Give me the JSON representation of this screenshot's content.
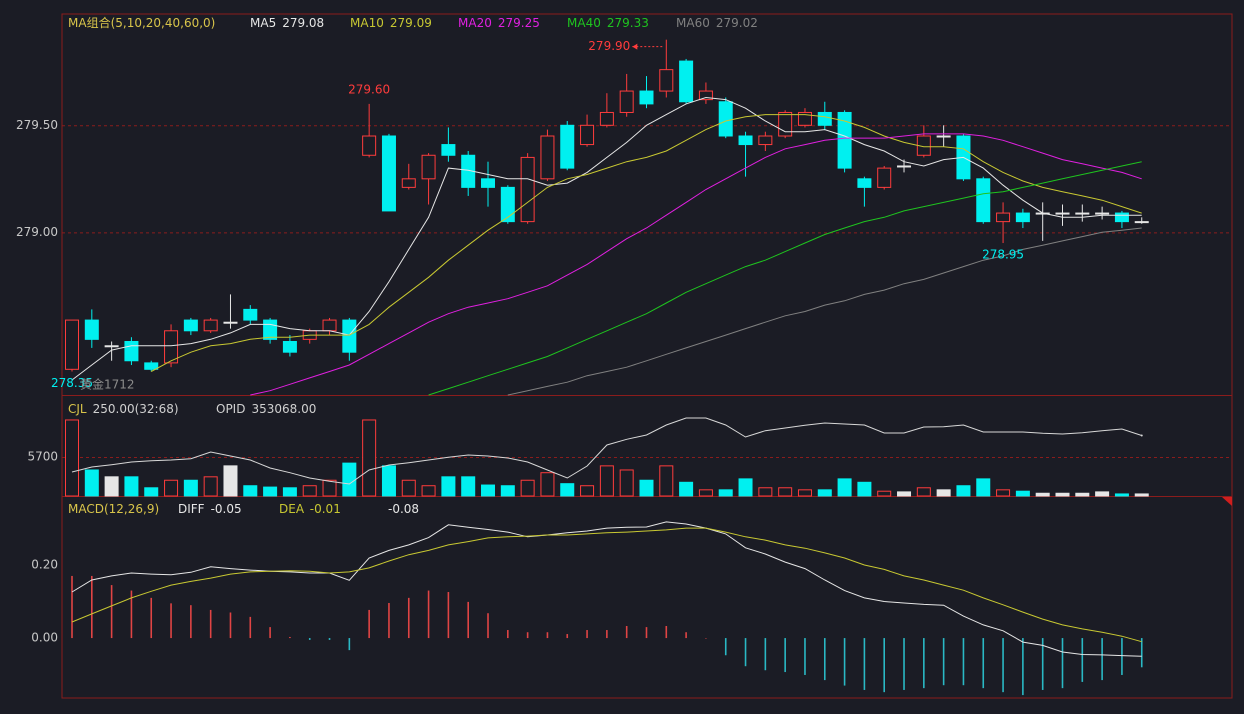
{
  "chart_data": [
    {
      "type": "candlestick",
      "title": "MA组合(5,10,20,40,60,0)",
      "instrument": "黄金1712",
      "up_color": "#ff3c3c",
      "down_color": "#00f0f0",
      "flat_color": "#e6e6e6",
      "ylim": [
        278.24,
        280.02
      ],
      "yticks": [
        {
          "value": 279.0,
          "label": "279.00"
        },
        {
          "value": 279.5,
          "label": "279.50"
        }
      ],
      "grid": true,
      "open": [
        278.36,
        278.59,
        278.47,
        278.49,
        278.39,
        278.39,
        278.59,
        278.54,
        278.58,
        278.64,
        278.59,
        278.49,
        278.5,
        278.54,
        278.59,
        279.36,
        279.45,
        279.21,
        279.25,
        279.41,
        279.36,
        279.25,
        279.21,
        279.05,
        279.25,
        279.5,
        279.41,
        279.5,
        279.56,
        279.66,
        279.66,
        279.8,
        279.62,
        279.61,
        279.45,
        279.41,
        279.45,
        279.5,
        279.56,
        279.56,
        279.25,
        279.21,
        279.31,
        279.36,
        279.45,
        279.45,
        279.25,
        279.05,
        279.09,
        279.09,
        279.09,
        279.09,
        279.09,
        279.09,
        279.05
      ],
      "high": [
        278.59,
        278.64,
        278.49,
        278.51,
        278.4,
        278.57,
        278.6,
        278.6,
        278.71,
        278.66,
        278.6,
        278.52,
        278.55,
        278.6,
        278.6,
        279.6,
        279.46,
        279.32,
        279.37,
        279.49,
        279.38,
        279.33,
        279.22,
        279.37,
        279.48,
        279.52,
        279.55,
        279.65,
        279.74,
        279.73,
        279.9,
        279.81,
        279.7,
        279.63,
        279.47,
        279.47,
        279.57,
        279.58,
        279.61,
        279.57,
        279.26,
        279.31,
        279.34,
        279.5,
        279.5,
        279.46,
        279.26,
        279.14,
        279.11,
        279.14,
        279.13,
        279.13,
        279.12,
        279.1,
        279.07
      ],
      "low": [
        278.35,
        278.46,
        278.4,
        278.38,
        278.35,
        278.37,
        278.52,
        278.53,
        278.55,
        278.57,
        278.48,
        278.42,
        278.48,
        278.52,
        278.4,
        279.35,
        279.1,
        279.2,
        279.13,
        279.33,
        279.17,
        279.12,
        279.04,
        279.04,
        279.24,
        279.29,
        279.4,
        279.49,
        279.54,
        279.58,
        279.63,
        279.6,
        279.6,
        279.44,
        279.26,
        279.38,
        279.44,
        279.49,
        279.48,
        279.28,
        279.12,
        279.2,
        279.28,
        279.35,
        279.4,
        279.24,
        279.04,
        278.95,
        279.02,
        278.96,
        279.03,
        279.05,
        279.06,
        279.02,
        279.04
      ],
      "close": [
        278.59,
        278.5,
        278.47,
        278.4,
        278.36,
        278.54,
        278.54,
        278.59,
        278.58,
        278.59,
        278.5,
        278.44,
        278.54,
        278.59,
        278.44,
        279.45,
        279.1,
        279.25,
        279.36,
        279.36,
        279.21,
        279.21,
        279.05,
        279.35,
        279.45,
        279.3,
        279.5,
        279.56,
        279.66,
        279.6,
        279.76,
        279.61,
        279.66,
        279.45,
        279.41,
        279.45,
        279.56,
        279.56,
        279.5,
        279.3,
        279.21,
        279.3,
        279.31,
        279.45,
        279.45,
        279.25,
        279.05,
        279.09,
        279.05,
        279.09,
        279.09,
        279.09,
        279.09,
        279.05,
        279.05
      ],
      "series": [
        {
          "name": "MA5",
          "color": "#e6e6e6",
          "values": [
            278.31,
            278.38,
            278.45,
            278.47,
            278.47,
            278.47,
            278.48,
            278.5,
            278.53,
            278.57,
            278.57,
            278.55,
            278.54,
            278.54,
            278.52,
            278.63,
            278.77,
            278.92,
            279.07,
            279.3,
            279.29,
            279.27,
            279.25,
            279.25,
            279.22,
            279.23,
            279.28,
            279.35,
            279.42,
            279.5,
            279.55,
            279.6,
            279.63,
            279.62,
            279.58,
            279.52,
            279.47,
            279.47,
            279.48,
            279.45,
            279.41,
            279.38,
            279.33,
            279.31,
            279.34,
            279.35,
            279.3,
            279.22,
            279.15,
            279.09,
            279.07,
            279.07,
            279.08,
            279.08,
            279.08
          ]
        },
        {
          "name": "MA10",
          "color": "#c8c832",
          "values": [
            null,
            null,
            null,
            null,
            278.35,
            278.4,
            278.44,
            278.47,
            278.48,
            278.5,
            278.51,
            278.51,
            278.52,
            278.52,
            278.52,
            278.57,
            278.65,
            278.72,
            278.79,
            278.87,
            278.94,
            279.01,
            279.07,
            279.14,
            279.21,
            279.25,
            279.27,
            279.3,
            279.33,
            279.35,
            279.38,
            279.43,
            279.48,
            279.52,
            279.54,
            279.55,
            279.55,
            279.55,
            279.54,
            279.52,
            279.49,
            279.45,
            279.42,
            279.4,
            279.4,
            279.39,
            279.33,
            279.28,
            279.24,
            279.21,
            279.19,
            279.17,
            279.15,
            279.12,
            279.09
          ]
        },
        {
          "name": "MA20",
          "color": "#e020e0",
          "values": [
            null,
            null,
            null,
            null,
            null,
            null,
            null,
            null,
            null,
            278.24,
            278.26,
            278.29,
            278.32,
            278.35,
            278.38,
            278.43,
            278.48,
            278.53,
            278.58,
            278.62,
            278.65,
            278.67,
            278.69,
            278.72,
            278.75,
            278.8,
            278.85,
            278.91,
            278.97,
            279.02,
            279.08,
            279.14,
            279.2,
            279.25,
            279.3,
            279.35,
            279.39,
            279.41,
            279.43,
            279.44,
            279.44,
            279.44,
            279.45,
            279.46,
            279.46,
            279.46,
            279.45,
            279.43,
            279.4,
            279.37,
            279.34,
            279.32,
            279.3,
            279.28,
            279.25
          ]
        },
        {
          "name": "MA40",
          "color": "#1fc41f",
          "values": [
            null,
            null,
            null,
            null,
            null,
            null,
            null,
            null,
            null,
            null,
            null,
            null,
            null,
            null,
            null,
            null,
            null,
            null,
            278.24,
            278.27,
            278.3,
            278.33,
            278.36,
            278.39,
            278.42,
            278.46,
            278.5,
            278.54,
            278.58,
            278.62,
            278.67,
            278.72,
            278.76,
            278.8,
            278.84,
            278.87,
            278.91,
            278.95,
            278.99,
            279.02,
            279.05,
            279.07,
            279.1,
            279.12,
            279.14,
            279.16,
            279.18,
            279.19,
            279.21,
            279.23,
            279.25,
            279.27,
            279.29,
            279.31,
            279.33
          ]
        },
        {
          "name": "MA60",
          "color": "#808080",
          "values": [
            null,
            null,
            null,
            null,
            null,
            null,
            null,
            null,
            null,
            null,
            null,
            null,
            null,
            null,
            null,
            null,
            null,
            null,
            null,
            null,
            null,
            null,
            278.24,
            278.26,
            278.28,
            278.3,
            278.33,
            278.35,
            278.37,
            278.4,
            278.43,
            278.46,
            278.49,
            278.52,
            278.55,
            278.58,
            278.61,
            278.63,
            278.66,
            278.68,
            278.71,
            278.73,
            278.76,
            278.78,
            278.81,
            278.84,
            278.87,
            278.89,
            278.92,
            278.94,
            278.96,
            278.98,
            279.0,
            279.01,
            279.02
          ]
        }
      ],
      "annotations": [
        {
          "index": 30,
          "value": 279.9,
          "label": "279.90"
        },
        {
          "index": 15,
          "value": 279.6,
          "label": "279.60"
        },
        {
          "index": 47,
          "value": 278.95,
          "label": "278.95"
        },
        {
          "index": 0,
          "value": 278.35,
          "label": "278.35"
        }
      ]
    },
    {
      "type": "volume",
      "title": "CJL",
      "subtitle": "250.00(32:68)",
      "up_color": "#ff3c3c",
      "down_color": "#00f0f0",
      "flat_color": "#e6e6e6",
      "ylim": [
        0,
        14600
      ],
      "yticks": [
        5700
      ],
      "grid": true,
      "values": [
        11100,
        3800,
        2800,
        2800,
        1200,
        2300,
        2300,
        2800,
        4400,
        1500,
        1300,
        1200,
        1500,
        2300,
        4800,
        11100,
        4400,
        2300,
        1500,
        2800,
        2800,
        1600,
        1500,
        2300,
        3400,
        1800,
        1500,
        4400,
        3800,
        2300,
        4400,
        2000,
        900,
        900,
        2500,
        1200,
        1200,
        900,
        900,
        2500,
        2000,
        700,
        600,
        1200,
        900,
        1500,
        2500,
        900,
        700,
        400,
        400,
        400,
        600,
        300,
        300
      ],
      "y2lim": [
        344000,
        359000
      ],
      "series": [
        {
          "name": "OPID",
          "color": "#d8d8d8",
          "axis": "y2",
          "current": {
            "value": 353068,
            "label": "353068.00"
          },
          "values": [
            347600,
            348350,
            348700,
            349100,
            349300,
            349400,
            349600,
            350600,
            350000,
            349400,
            348200,
            347500,
            346700,
            346200,
            345800,
            347900,
            348650,
            349000,
            349400,
            349800,
            350150,
            350000,
            349700,
            349100,
            347900,
            346700,
            348500,
            351650,
            352500,
            353150,
            354650,
            355700,
            355700,
            354650,
            352850,
            353800,
            354200,
            354600,
            354950,
            354800,
            354650,
            353450,
            353450,
            354350,
            354400,
            354650,
            353600,
            353600,
            353600,
            353400,
            353300,
            353500,
            353800,
            354050,
            353068
          ]
        }
      ]
    },
    {
      "type": "macd",
      "title": "MACD(12,26,9)",
      "up_color": "#e04444",
      "down_color": "#2ab8c4",
      "ylim": [
        -0.164,
        0.386
      ],
      "yticks": [
        {
          "value": 0.0,
          "label": "0.00"
        },
        {
          "value": 0.2,
          "label": "0.20"
        }
      ],
      "grid": false,
      "values": [
        0.17,
        0.17,
        0.145,
        0.13,
        0.11,
        0.095,
        0.09,
        0.077,
        0.07,
        0.058,
        0.03,
        0.003,
        -0.005,
        -0.005,
        -0.033,
        0.077,
        0.096,
        0.11,
        0.13,
        0.126,
        0.099,
        0.068,
        0.022,
        0.016,
        0.016,
        0.011,
        0.022,
        0.022,
        0.033,
        0.03,
        0.033,
        0.016,
        0.0,
        -0.047,
        -0.077,
        -0.088,
        -0.093,
        -0.101,
        -0.115,
        -0.13,
        -0.142,
        -0.148,
        -0.142,
        -0.137,
        -0.129,
        -0.129,
        -0.137,
        -0.148,
        -0.156,
        -0.142,
        -0.137,
        -0.12,
        -0.115,
        -0.101,
        -0.08
      ],
      "series": [
        {
          "name": "DIFF",
          "color": "#e6e6e6",
          "values": [
            0.126,
            0.159,
            0.17,
            0.178,
            0.175,
            0.173,
            0.18,
            0.195,
            0.19,
            0.186,
            0.183,
            0.181,
            0.178,
            0.178,
            0.158,
            0.219,
            0.24,
            0.255,
            0.275,
            0.31,
            0.303,
            0.297,
            0.29,
            0.277,
            0.282,
            0.288,
            0.293,
            0.301,
            0.303,
            0.304,
            0.318,
            0.312,
            0.301,
            0.285,
            0.247,
            0.23,
            0.208,
            0.19,
            0.159,
            0.13,
            0.11,
            0.1,
            0.096,
            0.092,
            0.09,
            0.06,
            0.036,
            0.02,
            -0.011,
            -0.02,
            -0.038,
            -0.045,
            -0.046,
            -0.048,
            -0.05
          ]
        },
        {
          "name": "DEA",
          "color": "#c8c832",
          "values": [
            0.044,
            0.066,
            0.088,
            0.11,
            0.128,
            0.145,
            0.155,
            0.164,
            0.175,
            0.181,
            0.183,
            0.184,
            0.183,
            0.178,
            0.181,
            0.192,
            0.211,
            0.228,
            0.24,
            0.255,
            0.264,
            0.274,
            0.277,
            0.279,
            0.282,
            0.282,
            0.285,
            0.288,
            0.29,
            0.293,
            0.296,
            0.301,
            0.301,
            0.29,
            0.277,
            0.268,
            0.255,
            0.246,
            0.233,
            0.219,
            0.2,
            0.188,
            0.17,
            0.159,
            0.145,
            0.131,
            0.11,
            0.091,
            0.071,
            0.052,
            0.036,
            0.025,
            0.016,
            0.005,
            -0.01
          ]
        }
      ]
    }
  ]
}
